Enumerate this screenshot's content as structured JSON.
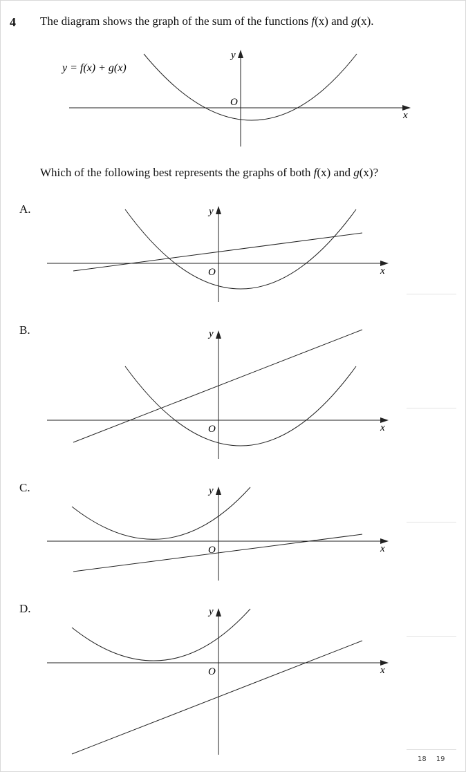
{
  "question": {
    "number": "4",
    "stem_before": "The diagram shows the graph of the sum of the functions ",
    "f": "f",
    "paren_x": "(x)",
    "and": " and ",
    "g": "g",
    "period": ".",
    "main_graph_label": "y = f(x) + g(x)",
    "sub_before": "Which of the following best represents the graphs of both ",
    "qmark": "?"
  },
  "axes": {
    "x_label": "x",
    "y_label": "y",
    "origin_label": "O"
  },
  "options": [
    {
      "label": "A."
    },
    {
      "label": "B."
    },
    {
      "label": "C."
    },
    {
      "label": "D."
    }
  ],
  "page_numbers": [
    "18",
    "19"
  ],
  "chart_data": [
    {
      "type": "line",
      "name_in_figure": "y = f(x) + g(x)",
      "curves": [
        {
          "kind": "parabola",
          "vertex": [
            0.6,
            -1.0
          ],
          "roots": [
            -2.5,
            3.8
          ]
        }
      ]
    },
    {
      "type": "line",
      "option": "A",
      "curves": [
        {
          "kind": "parabola",
          "vertex": [
            1.2,
            -1.3
          ],
          "roots": [
            -2.5,
            4.8
          ]
        },
        {
          "kind": "line",
          "y_intercept": 0.6,
          "x_intercept": -4.0
        }
      ]
    },
    {
      "type": "line",
      "option": "B",
      "curves": [
        {
          "kind": "parabola",
          "vertex": [
            1.2,
            -1.3
          ],
          "roots": [
            -2.5,
            4.8
          ]
        },
        {
          "kind": "line",
          "y_intercept": 1.7,
          "x_intercept": -4.5
        }
      ]
    },
    {
      "type": "line",
      "option": "C",
      "curves": [
        {
          "kind": "parabola",
          "vertex": [
            -3.0,
            0.2
          ],
          "roots": []
        },
        {
          "kind": "line",
          "y_intercept": -0.5,
          "x_intercept": 4.5
        }
      ]
    },
    {
      "type": "line",
      "option": "D",
      "curves": [
        {
          "kind": "parabola",
          "vertex": [
            -3.0,
            0.2
          ],
          "roots": []
        },
        {
          "kind": "line",
          "y_intercept": -2.0,
          "x_intercept": 4.5
        }
      ]
    }
  ]
}
